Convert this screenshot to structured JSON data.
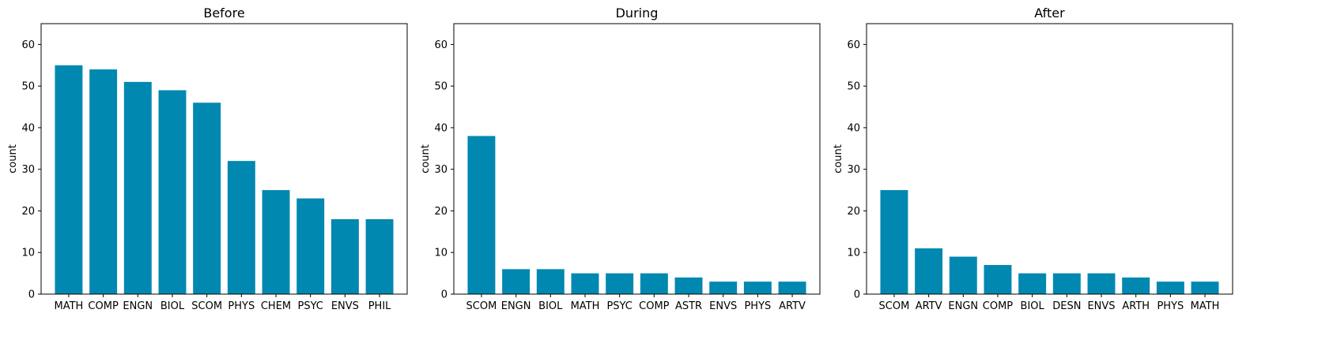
{
  "chart_data": [
    {
      "type": "bar",
      "title": "Before",
      "xlabel": "",
      "ylabel": "count",
      "ylim": [
        0,
        65
      ],
      "yticks": [
        0,
        10,
        20,
        30,
        40,
        50,
        60
      ],
      "categories": [
        "MATH",
        "COMP",
        "ENGN",
        "BIOL",
        "SCOM",
        "PHYS",
        "CHEM",
        "PSYC",
        "ENVS",
        "PHIL"
      ],
      "values": [
        55,
        54,
        51,
        49,
        46,
        32,
        25,
        23,
        18,
        18
      ],
      "color": "#0088b0",
      "grid": false
    },
    {
      "type": "bar",
      "title": "During",
      "xlabel": "",
      "ylabel": "count",
      "ylim": [
        0,
        65
      ],
      "yticks": [
        0,
        10,
        20,
        30,
        40,
        50,
        60
      ],
      "categories": [
        "SCOM",
        "ENGN",
        "BIOL",
        "MATH",
        "PSYC",
        "COMP",
        "ASTR",
        "ENVS",
        "PHYS",
        "ARTV"
      ],
      "values": [
        38,
        6,
        6,
        5,
        5,
        5,
        4,
        3,
        3,
        3
      ],
      "color": "#0088b0",
      "grid": false
    },
    {
      "type": "bar",
      "title": "After",
      "xlabel": "",
      "ylabel": "count",
      "ylim": [
        0,
        65
      ],
      "yticks": [
        0,
        10,
        20,
        30,
        40,
        50,
        60
      ],
      "categories": [
        "SCOM",
        "ARTV",
        "ENGN",
        "COMP",
        "BIOL",
        "DESN",
        "ENVS",
        "ARTH",
        "PHYS",
        "MATH"
      ],
      "values": [
        25,
        11,
        9,
        7,
        5,
        5,
        5,
        4,
        3,
        3
      ],
      "color": "#0088b0",
      "grid": false
    }
  ]
}
